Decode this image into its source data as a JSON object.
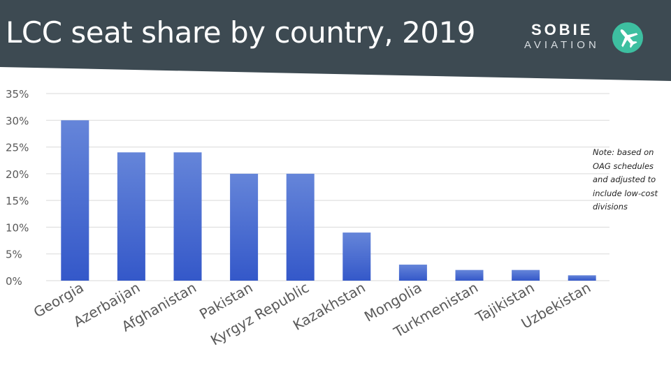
{
  "header": {
    "title": "LCC seat share by country, 2019",
    "bg_color": "#3d4a52",
    "logo_top": "SOBIE",
    "logo_bottom": "AVIATION",
    "logo_badge_color": "#3dbfa0",
    "logo_icon": "airplane-icon"
  },
  "note": "Note: based on OAG schedules and adjusted to include low-cost divisions",
  "chart_data": {
    "type": "bar",
    "categories": [
      "Georgia",
      "Azerbaijan",
      "Afghanistan",
      "Pakistan",
      "Kyrgyz Republic",
      "Kazakhstan",
      "Mongolia",
      "Turkmenistan",
      "Tajikistan",
      "Uzbekistan"
    ],
    "values": [
      30,
      24,
      24,
      20,
      20,
      9,
      3,
      2,
      2,
      1
    ],
    "yticks": [
      "0%",
      "5%",
      "10%",
      "15%",
      "20%",
      "25%",
      "30%",
      "35%"
    ],
    "ylim": [
      0,
      35
    ],
    "grid": true,
    "bar_color_top": "#6585d9",
    "bar_color_bottom": "#3458c9"
  }
}
